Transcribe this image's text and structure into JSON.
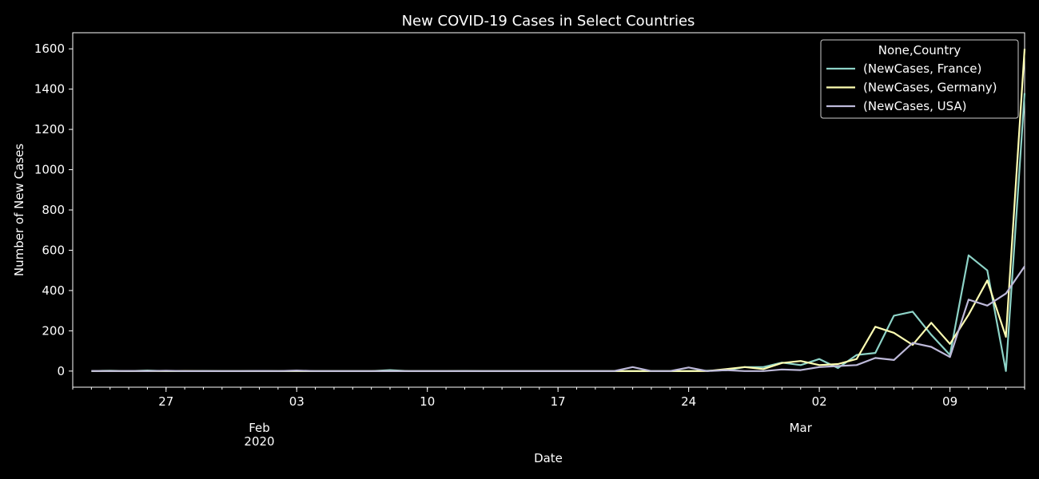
{
  "chart_data": {
    "type": "line",
    "title": "New COVID-19 Cases in Select Countries",
    "xlabel": "Date",
    "ylabel": "Number of New Cases",
    "xlim": [
      "2020-01-22",
      "2020-03-13"
    ],
    "ylim": [
      -80,
      1680
    ],
    "yticks": [
      0,
      200,
      400,
      600,
      800,
      1000,
      1200,
      1400,
      1600
    ],
    "xticks": [
      {
        "date": "2020-01-27",
        "label": "27"
      },
      {
        "date": "2020-02-03",
        "label": "03"
      },
      {
        "date": "2020-02-10",
        "label": "10"
      },
      {
        "date": "2020-02-17",
        "label": "17"
      },
      {
        "date": "2020-02-24",
        "label": "24"
      },
      {
        "date": "2020-03-02",
        "label": "02"
      },
      {
        "date": "2020-03-09",
        "label": "09"
      }
    ],
    "month_labels": [
      {
        "date": "2020-02-01",
        "lines": [
          "Feb",
          "2020"
        ]
      },
      {
        "date": "2020-03-01",
        "lines": [
          "Mar"
        ]
      }
    ],
    "grid": false,
    "legend": {
      "title": "None,Country",
      "position": "top-right"
    },
    "x": [
      "2020-01-23",
      "2020-01-24",
      "2020-01-25",
      "2020-01-26",
      "2020-01-27",
      "2020-01-28",
      "2020-01-29",
      "2020-01-30",
      "2020-01-31",
      "2020-02-01",
      "2020-02-02",
      "2020-02-03",
      "2020-02-04",
      "2020-02-05",
      "2020-02-06",
      "2020-02-07",
      "2020-02-08",
      "2020-02-09",
      "2020-02-10",
      "2020-02-11",
      "2020-02-12",
      "2020-02-13",
      "2020-02-14",
      "2020-02-15",
      "2020-02-16",
      "2020-02-17",
      "2020-02-18",
      "2020-02-19",
      "2020-02-20",
      "2020-02-21",
      "2020-02-22",
      "2020-02-23",
      "2020-02-24",
      "2020-02-25",
      "2020-02-26",
      "2020-02-27",
      "2020-02-28",
      "2020-02-29",
      "2020-03-01",
      "2020-03-02",
      "2020-03-03",
      "2020-03-04",
      "2020-03-05",
      "2020-03-06",
      "2020-03-07",
      "2020-03-08",
      "2020-03-09",
      "2020-03-10",
      "2020-03-11",
      "2020-03-12",
      "2020-03-13"
    ],
    "series": [
      {
        "name": "(NewCases, France)",
        "color": "#8dd3c7",
        "values": [
          0,
          2,
          0,
          3,
          0,
          0,
          1,
          0,
          0,
          1,
          0,
          0,
          0,
          0,
          0,
          0,
          5,
          0,
          0,
          0,
          1,
          0,
          0,
          0,
          0,
          0,
          0,
          0,
          0,
          0,
          0,
          0,
          0,
          2,
          4,
          20,
          20,
          42,
          30,
          60,
          15,
          80,
          90,
          275,
          295,
          180,
          80,
          575,
          500,
          0,
          1380
        ]
      },
      {
        "name": "(NewCases, Germany)",
        "color": "#ffffb3",
        "values": [
          0,
          0,
          0,
          0,
          0,
          1,
          0,
          0,
          0,
          0,
          0,
          0,
          0,
          0,
          0,
          0,
          0,
          0,
          0,
          0,
          0,
          0,
          0,
          0,
          0,
          0,
          0,
          0,
          0,
          0,
          0,
          0,
          0,
          0,
          10,
          20,
          10,
          40,
          50,
          30,
          35,
          60,
          220,
          190,
          130,
          240,
          135,
          280,
          450,
          170,
          1600
        ]
      },
      {
        "name": "(NewCases, USA)",
        "color": "#bebada",
        "values": [
          1,
          0,
          1,
          0,
          2,
          0,
          0,
          0,
          0,
          1,
          0,
          3,
          0,
          0,
          0,
          0,
          0,
          0,
          0,
          0,
          0,
          0,
          0,
          0,
          0,
          0,
          0,
          0,
          0,
          20,
          0,
          0,
          18,
          0,
          5,
          0,
          0,
          8,
          5,
          20,
          25,
          30,
          65,
          55,
          140,
          120,
          70,
          355,
          325,
          385,
          520
        ]
      }
    ]
  }
}
